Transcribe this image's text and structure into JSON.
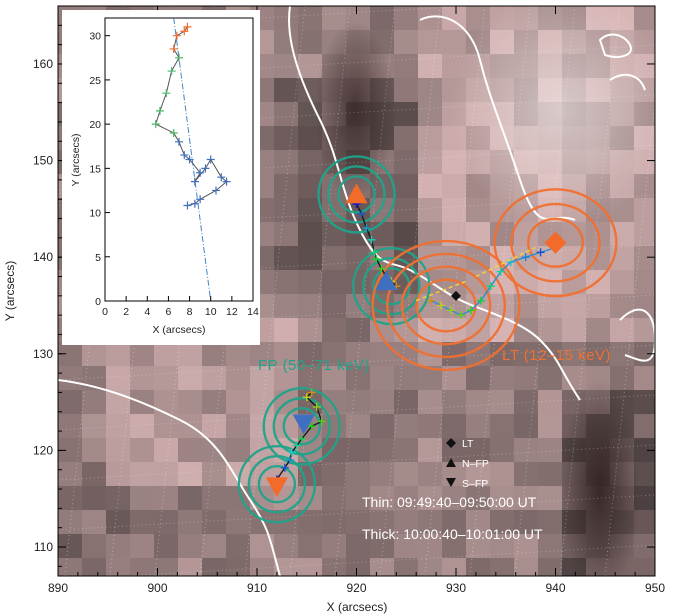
{
  "chart_data": {
    "type": "scatter",
    "xlabel": "X (arcsecs)",
    "ylabel": "Y (arcsecs)",
    "xlim": [
      890,
      950
    ],
    "ylim": [
      107,
      166
    ],
    "xticks": [
      "890",
      "900",
      "910",
      "920",
      "930",
      "940",
      "950"
    ],
    "yticks": [
      "110",
      "120",
      "130",
      "140",
      "150",
      "160"
    ],
    "background": "grayscale EUV image with white contours and dotted coordinate grid",
    "labels": {
      "fp": "FP (50–71 keV)",
      "lt": "LT (12–15 keV)",
      "thin": "Thin: 09:49:40–09:50:00 UT",
      "thick": "Thick: 10:00:40–10:01:00 UT"
    },
    "legend": [
      {
        "symbol": "diamond",
        "label": "LT"
      },
      {
        "symbol": "triangle-up",
        "label": "N–FP"
      },
      {
        "symbol": "triangle-down",
        "label": "S–FP"
      }
    ],
    "contours": [
      {
        "name": "N-FP",
        "energy": "50-71 keV",
        "center": [
          920,
          146.5
        ],
        "color": "#1fa389"
      },
      {
        "name": "S-FP",
        "energy": "50-71 keV",
        "center": [
          912,
          116.5
        ],
        "color": "#1fa389"
      },
      {
        "name": "FP",
        "energy": "50-71 keV",
        "center": [
          914.5,
          122.5
        ],
        "color": "#1fa389"
      },
      {
        "name": "FP",
        "energy": "50-71 keV",
        "center": [
          923.5,
          137
        ],
        "color": "#1fa389"
      },
      {
        "name": "LT",
        "energy": "12-15 keV",
        "center": [
          940,
          141.5
        ],
        "color": "#f07030"
      },
      {
        "name": "LT",
        "energy": "12-15 keV",
        "center": [
          929,
          135
        ],
        "color": "#f07030"
      }
    ],
    "markers": [
      {
        "type": "triangle-up",
        "x": 920,
        "y": 146.5,
        "color": "#f26b2a"
      },
      {
        "type": "triangle-up",
        "x": 923,
        "y": 137.5,
        "color": "#3f6fc0"
      },
      {
        "type": "triangle-down",
        "x": 912,
        "y": 116.3,
        "color": "#f26b2a"
      },
      {
        "type": "triangle-down",
        "x": 914.7,
        "y": 122.8,
        "color": "#3f6fc0"
      },
      {
        "type": "diamond",
        "x": 940,
        "y": 141.5,
        "color": "#f26b2a"
      },
      {
        "type": "diamond",
        "x": 930,
        "y": 136,
        "color": "#111111"
      }
    ],
    "tracks": [
      {
        "name": "N-FP",
        "x": [
          920,
          920.5,
          921,
          921.5,
          921.8,
          922,
          922.5,
          923,
          923.5,
          924
        ],
        "y": [
          145.5,
          144.5,
          143,
          141.8,
          140.5,
          139.8,
          138.8,
          138,
          137.5,
          137
        ]
      },
      {
        "name": "S-FP",
        "x": [
          912,
          912.8,
          913.3,
          913.5,
          914,
          914.5,
          915.5,
          916.5,
          916,
          915,
          915.5
        ],
        "y": [
          117,
          118.2,
          119,
          119.8,
          120.5,
          121.2,
          122.5,
          123,
          124.5,
          125.5,
          126
        ]
      },
      {
        "name": "LT",
        "x": [
          940,
          938.5,
          937,
          935.5,
          934.5,
          933.5,
          932.5,
          931.5,
          930.5,
          929.5,
          928.5,
          927.5
        ],
        "y": [
          141,
          140.5,
          140,
          139.5,
          138.5,
          137,
          135.5,
          134.5,
          134,
          134.5,
          135,
          135.5
        ]
      }
    ],
    "inset": {
      "xlabel": "X (arcsecs)",
      "ylabel": "Y (arcsecs)",
      "xlim": [
        0,
        14
      ],
      "ylim": [
        0,
        32
      ],
      "xticks": [
        "0",
        "2",
        "4",
        "6",
        "8",
        "10",
        "12",
        "14"
      ],
      "yticks": [
        "0",
        "5",
        "10",
        "15",
        "20",
        "25",
        "30"
      ],
      "track": {
        "x": [
          7.8,
          7.5,
          6.8,
          6.5,
          7.0,
          6.3,
          5.8,
          5.2,
          4.8,
          6.5,
          7.0,
          7.5,
          8.0,
          9.0,
          8.5,
          9.5,
          10.0,
          11.0,
          11.5,
          10.5,
          9.0,
          8.5,
          7.8
        ],
        "y": [
          31.0,
          30.5,
          30.0,
          28.5,
          27.5,
          26.0,
          23.5,
          21.5,
          20.0,
          19.0,
          18.0,
          16.5,
          16.0,
          14.5,
          13.5,
          15.0,
          16.0,
          14.0,
          13.5,
          12.5,
          11.5,
          11.0,
          10.8
        ]
      },
      "trend": {
        "x": [
          6.5,
          10.0
        ],
        "y": [
          32.0,
          0.0
        ]
      }
    }
  }
}
